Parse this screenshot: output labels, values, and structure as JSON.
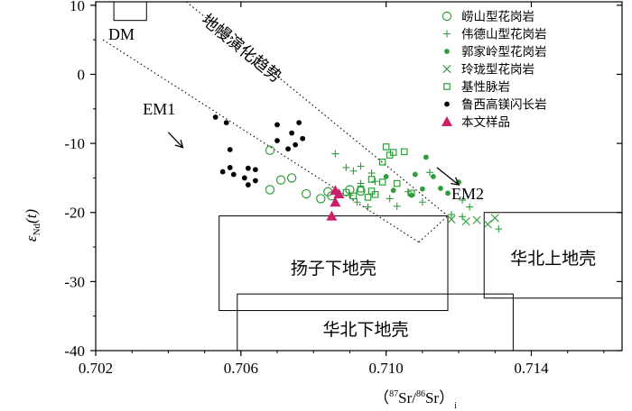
{
  "chart_data": {
    "type": "scatter",
    "x_axis": {
      "range": [
        0.702,
        0.7165
      ],
      "ticks": [
        0.702,
        0.706,
        0.71,
        0.714
      ],
      "tick_labels": [
        "0.702",
        "0.706",
        "0.710",
        "0.714"
      ],
      "label": {
        "open": "（",
        "sup1": "87",
        "mid": "Sr/",
        "sup2": "86",
        "end": "Sr）",
        "sub": "i"
      }
    },
    "y_axis": {
      "range": [
        -40,
        10.5
      ],
      "ticks": [
        10,
        0,
        -10,
        -20,
        -30,
        -40
      ],
      "tick_labels": [
        "10",
        "0",
        "-10",
        "-20",
        "-30",
        "-40"
      ],
      "label": {
        "epsilon": "ε",
        "sub": "Nd",
        "rest": "(t)"
      }
    },
    "colors": {
      "green": "#2e9e3a",
      "black": "#000000",
      "magenta": "#cc1f6a"
    },
    "series": [
      {
        "name": "崂山型花岗岩",
        "marker": "open-circle",
        "color": "#2e9e3a",
        "points": [
          [
            0.7068,
            -11.0
          ],
          [
            0.7074,
            -15.0
          ],
          [
            0.7071,
            -15.3
          ],
          [
            0.7068,
            -16.7
          ],
          [
            0.7078,
            -17.3
          ],
          [
            0.7082,
            -18.0
          ],
          [
            0.7084,
            -17.0
          ],
          [
            0.709,
            -16.7
          ],
          [
            0.7093,
            -16.9
          ],
          [
            0.7085,
            -17.6
          ]
        ]
      },
      {
        "name": "伟德山型花岗岩",
        "marker": "plus",
        "color": "#2e9e3a",
        "points": [
          [
            0.7086,
            -11.5
          ],
          [
            0.7089,
            -13.5
          ],
          [
            0.7091,
            -14.0
          ],
          [
            0.7093,
            -13.3
          ],
          [
            0.7096,
            -14.3
          ],
          [
            0.7097,
            -15.5
          ],
          [
            0.7093,
            -15.8
          ],
          [
            0.709,
            -17.5
          ],
          [
            0.7092,
            -18.5
          ],
          [
            0.7095,
            -19.2
          ],
          [
            0.7101,
            -18.0
          ],
          [
            0.7103,
            -19.1
          ],
          [
            0.711,
            -18.5
          ],
          [
            0.7121,
            -18.2
          ],
          [
            0.7123,
            -19.2
          ],
          [
            0.7118,
            -20.3
          ],
          [
            0.7121,
            -20.6
          ],
          [
            0.7131,
            -22.4
          ],
          [
            0.7112,
            -14.2
          ],
          [
            0.7106,
            -17.0
          ]
        ]
      },
      {
        "name": "郭家岭型花岗岩",
        "marker": "filled-circle",
        "color": "#2e9e3a",
        "points": [
          [
            0.7108,
            -14.5
          ],
          [
            0.7111,
            -12.0
          ],
          [
            0.7113,
            -14.8
          ],
          [
            0.7115,
            -16.5
          ],
          [
            0.711,
            -16.6
          ],
          [
            0.7102,
            -16.8
          ],
          [
            0.7107,
            -17.5
          ],
          [
            0.712,
            -15.6
          ],
          [
            0.7117,
            -17.2
          ],
          [
            0.71,
            -14.8
          ]
        ]
      },
      {
        "name": "玲珑型花岗岩",
        "marker": "cross",
        "color": "#2e9e3a",
        "points": [
          [
            0.7118,
            -21.0
          ],
          [
            0.7122,
            -21.3
          ],
          [
            0.7125,
            -21.1
          ],
          [
            0.7128,
            -21.7
          ],
          [
            0.713,
            -20.8
          ]
        ]
      },
      {
        "name": "基性脉岩",
        "marker": "open-square",
        "color": "#2e9e3a",
        "points": [
          [
            0.71,
            -10.5
          ],
          [
            0.7102,
            -11.3
          ],
          [
            0.7105,
            -11.2
          ],
          [
            0.7101,
            -11.7
          ],
          [
            0.7099,
            -12.7
          ],
          [
            0.7096,
            -15.2
          ],
          [
            0.7099,
            -15.6
          ],
          [
            0.7093,
            -16.6
          ],
          [
            0.7096,
            -16.9
          ],
          [
            0.7089,
            -17.1
          ],
          [
            0.7091,
            -17.6
          ],
          [
            0.7095,
            -17.8
          ],
          [
            0.7097,
            -17.4
          ],
          [
            0.7103,
            -15.8
          ],
          [
            0.7107,
            -17.2
          ]
        ]
      },
      {
        "name": "鲁西高镁闪长岩",
        "marker": "filled-circle",
        "color": "#000000",
        "points": [
          [
            0.7053,
            -6.2
          ],
          [
            0.7056,
            -7.0
          ],
          [
            0.7076,
            -7.0
          ],
          [
            0.707,
            -7.3
          ],
          [
            0.7074,
            -8.5
          ],
          [
            0.7077,
            -9.3
          ],
          [
            0.707,
            -9.6
          ],
          [
            0.7075,
            -10.2
          ],
          [
            0.7073,
            -10.8
          ],
          [
            0.7057,
            -10.9
          ],
          [
            0.7057,
            -13.5
          ],
          [
            0.7062,
            -13.6
          ],
          [
            0.7064,
            -13.8
          ],
          [
            0.7055,
            -14.1
          ],
          [
            0.7058,
            -14.5
          ],
          [
            0.7061,
            -15.0
          ],
          [
            0.7064,
            -15.4
          ],
          [
            0.7062,
            -16.0
          ]
        ]
      },
      {
        "name": "本文样品",
        "marker": "filled-triangle",
        "color": "#cc1f6a",
        "points": [
          [
            0.7086,
            -16.8
          ],
          [
            0.7087,
            -17.3
          ],
          [
            0.7086,
            -18.5
          ],
          [
            0.7085,
            -20.5
          ]
        ]
      }
    ],
    "regions": [
      {
        "label": "DM",
        "x": [
          0.7025,
          0.7034
        ],
        "y": [
          7.8,
          10.5
        ]
      },
      {
        "label": "扬子下地壳",
        "x": [
          0.7054,
          0.7117
        ],
        "y": [
          -34.2,
          -20.5
        ]
      },
      {
        "label": "华北下地壳",
        "x": [
          0.7059,
          0.7135
        ],
        "y": [
          -40,
          -31.8
        ]
      },
      {
        "label": "华北上地壳",
        "x": [
          0.7127,
          0.7165
        ],
        "y": [
          -32.4,
          -20.0
        ]
      }
    ],
    "trend_band": {
      "label": "地幔演化趋势",
      "upper": [
        [
          0.7045,
          10.5
        ],
        [
          0.7117,
          -20.5
        ]
      ],
      "lower": [
        [
          0.7022,
          5.0
        ],
        [
          0.7109,
          -24.3
        ]
      ],
      "tip": [
        0.7109,
        -24.3
      ],
      "tip_upper": [
        0.7117,
        -20.5
      ]
    },
    "annotations": [
      {
        "text": "EM1",
        "text_at": [
          0.7033,
          -5.8
        ],
        "arrow_from": [
          0.704,
          -8.4
        ],
        "arrow_to": [
          0.7044,
          -10.6
        ]
      },
      {
        "text": "EM2",
        "text_at": [
          0.7118,
          -18.1
        ],
        "arrow_from": [
          0.7114,
          -13.5
        ],
        "arrow_to": [
          0.712,
          -16.0
        ]
      }
    ],
    "legend": {
      "position": "top-right"
    }
  }
}
